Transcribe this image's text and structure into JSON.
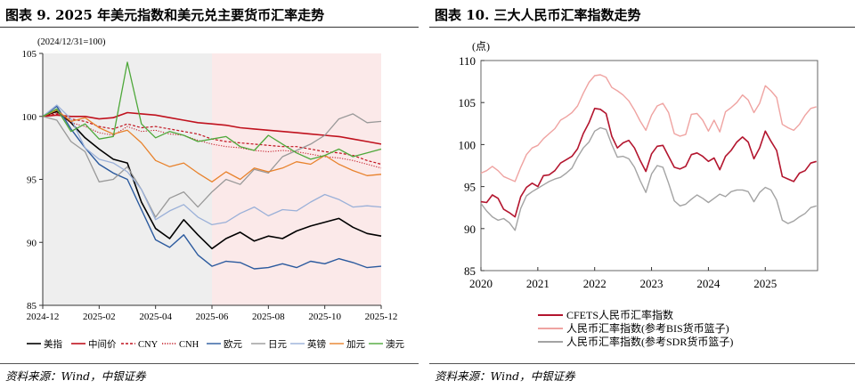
{
  "left": {
    "title": "图表 9. 2025 年美元指数和美元兑主要货币汇率走势",
    "source": "资料来源：Wind，中银证券",
    "chart_data": {
      "type": "line",
      "note": "(2024/12/31=100)",
      "ylim": [
        85,
        105
      ],
      "yticks": [
        "85",
        "90",
        "95",
        "100",
        "105"
      ],
      "xlim": [
        0,
        12
      ],
      "xticks": [
        {
          "x": 0,
          "label": "2024-12"
        },
        {
          "x": 2,
          "label": "2025-02"
        },
        {
          "x": 4,
          "label": "2025-04"
        },
        {
          "x": 6,
          "label": "2025-06"
        },
        {
          "x": 8,
          "label": "2025-08"
        },
        {
          "x": 10,
          "label": "2025-10"
        },
        {
          "x": 12,
          "label": "2025-12"
        }
      ],
      "shade": [
        {
          "from": 0,
          "to": 6,
          "color": "#eeeeee"
        },
        {
          "from": 6,
          "to": 12,
          "color": "#fbe9e9"
        }
      ],
      "x": [
        0,
        0.5,
        1,
        1.5,
        2,
        2.5,
        3,
        3.5,
        4,
        4.5,
        5,
        5.5,
        6,
        6.5,
        7,
        7.5,
        8,
        8.5,
        9,
        9.5,
        10,
        10.5,
        11,
        11.5,
        12
      ],
      "series": [
        {
          "name": "美指",
          "color": "#000000",
          "width": 1.6,
          "dash": "",
          "values": [
            100,
            100.4,
            99.5,
            98.3,
            97.4,
            96.6,
            96.3,
            93.2,
            91.1,
            90.3,
            91.8,
            90.6,
            89.5,
            90.3,
            90.8,
            90.1,
            90.5,
            90.3,
            90.9,
            91.3,
            91.6,
            91.9,
            91.2,
            90.7,
            90.5
          ]
        },
        {
          "name": "中间价",
          "color": "#c0121e",
          "width": 1.6,
          "dash": "",
          "values": [
            100,
            100.1,
            100.0,
            100.0,
            99.8,
            99.9,
            100.3,
            100.2,
            100.1,
            99.9,
            99.7,
            99.5,
            99.4,
            99.3,
            99.1,
            99.0,
            98.9,
            98.8,
            98.7,
            98.6,
            98.5,
            98.4,
            98.2,
            98.0,
            97.8
          ]
        },
        {
          "name": "CNY",
          "color": "#c0121e",
          "width": 1.2,
          "dash": "3,2",
          "values": [
            100,
            100.2,
            99.8,
            99.6,
            99.2,
            99.0,
            99.4,
            99.1,
            99.2,
            99.0,
            98.8,
            98.6,
            98.2,
            98.0,
            97.9,
            97.8,
            97.7,
            97.6,
            97.6,
            97.4,
            97.2,
            97.1,
            96.9,
            96.5,
            96.2
          ]
        },
        {
          "name": "CNH",
          "color": "#c0121e",
          "width": 1.0,
          "dash": "1.2,1.6",
          "values": [
            100,
            100.3,
            99.5,
            99.2,
            98.7,
            98.5,
            99.2,
            98.8,
            98.9,
            98.6,
            98.5,
            98.1,
            97.8,
            97.6,
            97.5,
            97.3,
            97.2,
            97.3,
            97.2,
            97.0,
            96.8,
            96.7,
            96.5,
            96.2,
            95.9
          ]
        },
        {
          "name": "欧元",
          "color": "#2b5a9e",
          "width": 1.4,
          "dash": "",
          "values": [
            100,
            100.8,
            99.0,
            97.5,
            96.2,
            95.5,
            95.0,
            92.6,
            90.2,
            89.6,
            90.6,
            89.0,
            88.1,
            88.5,
            88.4,
            87.9,
            88.0,
            88.3,
            88.0,
            88.5,
            88.3,
            88.7,
            88.4,
            88.0,
            88.1
          ]
        },
        {
          "name": "日元",
          "color": "#999999",
          "width": 1.3,
          "dash": "",
          "values": [
            100,
            99.7,
            98.0,
            97.2,
            94.8,
            95.0,
            96.0,
            94.2,
            92.0,
            93.5,
            94.0,
            92.8,
            94.0,
            95.0,
            94.6,
            95.8,
            95.5,
            96.8,
            97.3,
            97.8,
            98.5,
            99.8,
            100.2,
            99.5,
            99.6
          ]
        },
        {
          "name": "英镑",
          "color": "#9ab0d8",
          "width": 1.3,
          "dash": "",
          "values": [
            100,
            100.9,
            99.8,
            97.5,
            96.6,
            96.3,
            95.6,
            94.2,
            91.8,
            92.5,
            93.0,
            92.0,
            91.4,
            91.6,
            92.3,
            92.8,
            92.1,
            92.6,
            92.5,
            93.2,
            93.8,
            93.4,
            92.8,
            92.9,
            92.8
          ]
        },
        {
          "name": "加元",
          "color": "#e8822c",
          "width": 1.3,
          "dash": "",
          "values": [
            100,
            100.5,
            99.6,
            99.9,
            99.1,
            98.6,
            98.9,
            97.9,
            96.5,
            96.0,
            96.3,
            95.5,
            94.8,
            95.6,
            95.0,
            95.9,
            95.6,
            95.9,
            96.4,
            96.2,
            96.9,
            96.2,
            95.7,
            95.3,
            95.4
          ]
        },
        {
          "name": "澳元",
          "color": "#4ea83a",
          "width": 1.3,
          "dash": "",
          "values": [
            100,
            100.6,
            98.8,
            99.4,
            98.2,
            98.4,
            104.3,
            99.4,
            98.3,
            98.8,
            98.5,
            98.0,
            98.2,
            98.4,
            97.6,
            97.3,
            98.5,
            97.8,
            97.1,
            96.6,
            96.9,
            97.4,
            96.8,
            97.1,
            97.4
          ]
        }
      ]
    }
  },
  "right": {
    "title": "图表 10. 三大人民币汇率指数走势",
    "source": "资料来源：Wind，中银证券",
    "chart_data": {
      "type": "line",
      "ylabel": "(点)",
      "ylim": [
        85,
        110
      ],
      "yticks": [
        "85",
        "90",
        "95",
        "100",
        "105",
        "110"
      ],
      "xlim": [
        2020,
        2025.92
      ],
      "xticks": [
        {
          "x": 2020,
          "label": "2020"
        },
        {
          "x": 2021,
          "label": "2021"
        },
        {
          "x": 2022,
          "label": "2022"
        },
        {
          "x": 2023,
          "label": "2023"
        },
        {
          "x": 2024,
          "label": "2024"
        },
        {
          "x": 2025,
          "label": "2025"
        }
      ],
      "x": [
        2020.0,
        2020.1,
        2020.2,
        2020.3,
        2020.4,
        2020.5,
        2020.6,
        2020.7,
        2020.8,
        2020.9,
        2021.0,
        2021.1,
        2021.2,
        2021.3,
        2021.4,
        2021.5,
        2021.6,
        2021.7,
        2021.8,
        2021.9,
        2022.0,
        2022.1,
        2022.2,
        2022.3,
        2022.4,
        2022.5,
        2022.6,
        2022.7,
        2022.8,
        2022.9,
        2023.0,
        2023.1,
        2023.2,
        2023.3,
        2023.4,
        2023.5,
        2023.6,
        2023.7,
        2023.8,
        2023.9,
        2024.0,
        2024.1,
        2024.2,
        2024.3,
        2024.4,
        2024.5,
        2024.6,
        2024.7,
        2024.8,
        2024.9,
        2025.0,
        2025.1,
        2025.2,
        2025.3,
        2025.4,
        2025.5,
        2025.6,
        2025.7,
        2025.8,
        2025.9
      ],
      "series": [
        {
          "name": "CFETS人民币汇率指数",
          "color": "#b3152e",
          "width": 1.6,
          "values": [
            93.2,
            93.1,
            94.0,
            93.6,
            92.3,
            91.9,
            91.4,
            93.8,
            94.9,
            95.4,
            95.0,
            96.3,
            96.4,
            96.9,
            97.8,
            98.2,
            98.6,
            99.5,
            101.3,
            102.6,
            104.3,
            104.2,
            103.7,
            101.0,
            99.6,
            100.2,
            100.5,
            99.6,
            98.1,
            96.8,
            98.9,
            99.8,
            99.9,
            98.6,
            97.3,
            97.1,
            97.4,
            98.8,
            99.0,
            98.6,
            98.0,
            98.4,
            97.0,
            98.6,
            99.3,
            100.3,
            100.9,
            100.3,
            98.3,
            99.6,
            101.6,
            100.4,
            99.3,
            96.2,
            95.9,
            95.6,
            96.6,
            96.9,
            97.8,
            98.0
          ]
        },
        {
          "name": "人民币汇率指数(参考BIS货币篮子)",
          "color": "#efa3a1",
          "width": 1.4,
          "values": [
            96.6,
            96.9,
            97.4,
            96.9,
            96.2,
            95.9,
            95.6,
            97.3,
            98.8,
            99.6,
            99.9,
            100.7,
            101.3,
            101.9,
            102.9,
            103.3,
            103.8,
            104.6,
            106.1,
            107.4,
            108.2,
            108.3,
            108.0,
            106.8,
            106.4,
            105.9,
            105.2,
            104.1,
            102.8,
            101.7,
            103.5,
            104.6,
            104.9,
            103.8,
            101.3,
            101.0,
            101.2,
            103.6,
            103.7,
            102.9,
            101.6,
            102.9,
            101.5,
            103.9,
            104.4,
            105.0,
            105.9,
            105.3,
            103.8,
            104.9,
            107.0,
            106.4,
            105.6,
            102.4,
            102.0,
            101.7,
            102.4,
            103.5,
            104.3,
            104.5
          ]
        },
        {
          "name": "人民币汇率指数(参考SDR货币篮子)",
          "color": "#a3a3a3",
          "width": 1.4,
          "values": [
            93.0,
            92.1,
            91.4,
            91.0,
            91.2,
            90.7,
            89.8,
            92.4,
            93.9,
            94.4,
            94.8,
            95.2,
            95.6,
            95.9,
            96.1,
            96.6,
            97.2,
            98.5,
            99.6,
            100.3,
            101.6,
            102.0,
            101.8,
            100.0,
            98.5,
            98.6,
            98.3,
            97.3,
            95.7,
            94.3,
            96.5,
            97.5,
            97.3,
            95.4,
            93.3,
            92.7,
            92.9,
            93.5,
            94.0,
            93.6,
            93.1,
            93.6,
            94.1,
            93.8,
            94.4,
            94.6,
            94.6,
            94.4,
            93.2,
            94.3,
            94.9,
            94.6,
            93.4,
            91.0,
            90.6,
            90.9,
            91.4,
            91.8,
            92.5,
            92.7
          ]
        }
      ]
    }
  }
}
